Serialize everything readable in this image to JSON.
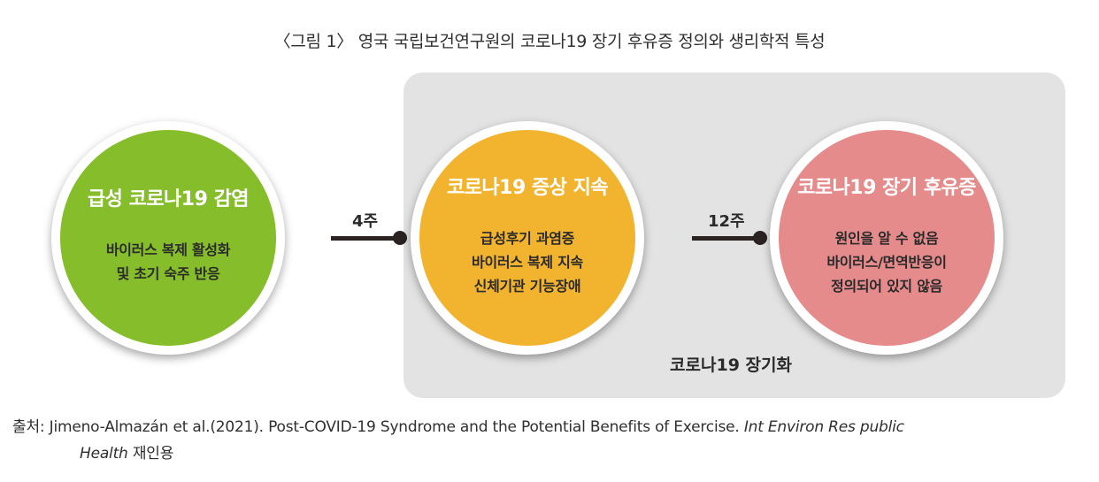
{
  "title": "〈그림 1〉 영국 국립보건연구원의 코로나19 장기 후유증 정의와 생리학적 특성",
  "stages": [
    {
      "title": "급성 코로나19 감염",
      "lines": [
        "바이러스 복제 활성화",
        "및 초기 숙주 반응"
      ],
      "color": "#86bd2a"
    },
    {
      "title": "코로나19 증상 지속",
      "lines": [
        "급성후기 과염증",
        "바이러스 복제 지속",
        "신체기관 기능장애"
      ],
      "color": "#f2b42f"
    },
    {
      "title": "코로나19 장기 후유증",
      "lines": [
        "원인을 알 수 없음",
        "바이러스/면역반응이",
        "정의되어 있지 않음"
      ],
      "color": "#e58b8b"
    }
  ],
  "connectors": [
    {
      "label": "4주"
    },
    {
      "label": "12주"
    }
  ],
  "panel_label": "코로나19 장기화",
  "source": {
    "prefix": "출처: ",
    "text": "Jimeno-Almazán et al.(2021). Post-COVID-19 Syndrome and the Potential Benefits of Exercise. ",
    "journal_1": "Int Environ Res public",
    "journal_2": "Health",
    "suffix": " 재인용"
  }
}
